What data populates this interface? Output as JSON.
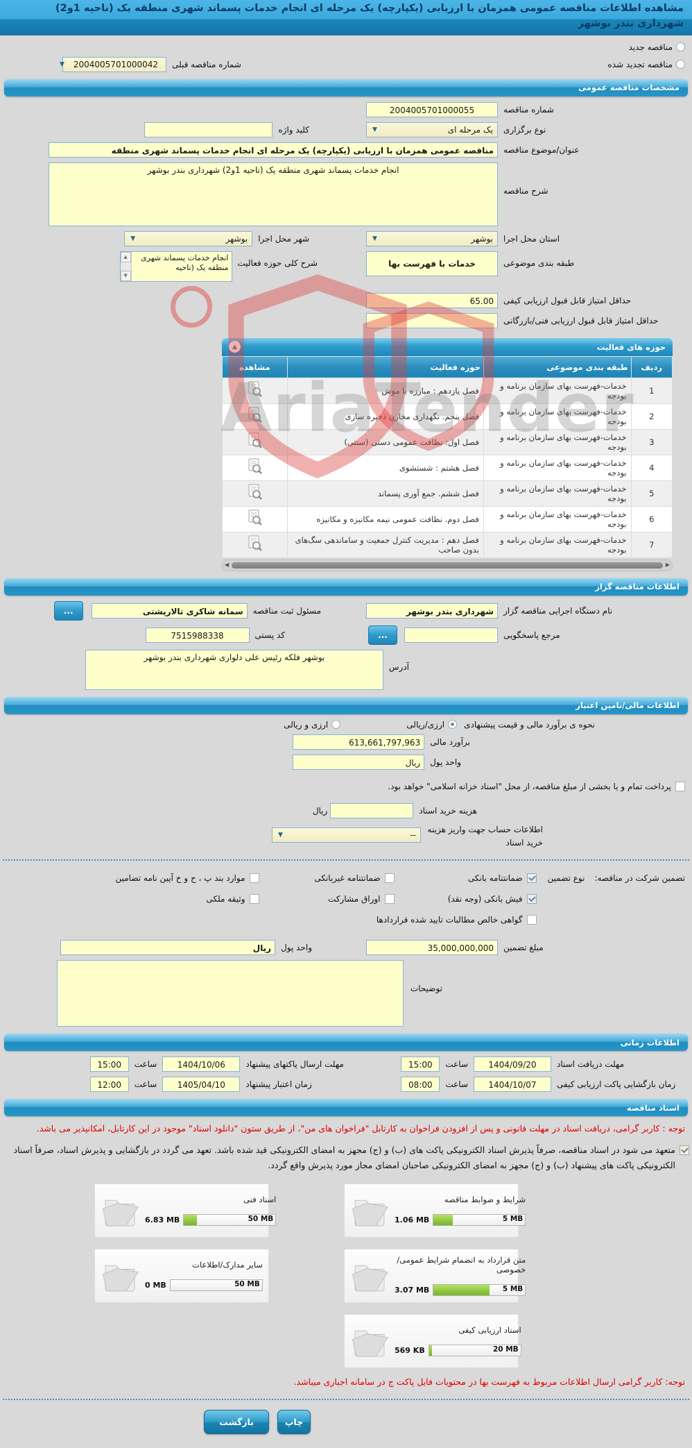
{
  "title": "مشاهده اطلاعات مناقصه عمومی همزمان با ارزیابی (یکپارچه) یک مرحله ای انجام خدمات پسماند شهری منطقه یک (ناحیه 1و2) شهرداری بندر بوشهر",
  "colors": {
    "accent": "#2795c8",
    "field_bg": "#ffffcc",
    "alert_red": "#e00000",
    "progress_green": "#8cc63e"
  },
  "top": {
    "new_label": "مناقصه جدید",
    "new_checked": false,
    "renewed_label": "مناقصه تجدید شده",
    "renewed_checked": false,
    "prev_no_label": "شماره مناقصه قبلی",
    "prev_no_value": "2004005701000042"
  },
  "specs": {
    "header": "مشخصات مناقصه عمومی",
    "tender_no_label": "شماره مناقصه",
    "tender_no_value": "2004005701000055",
    "type_label": "نوع برگزاری",
    "type_value": "یک مرحله ای",
    "keyword_label": "کلید واژه",
    "keyword_value": "",
    "subject_label": "عنوان/موضوع مناقصه",
    "subject_value": "مناقصه عمومی همزمان با ارزیابی (یکپارچه) یک مرحله ای انجام خدمات پسماند شهری منطقه",
    "desc_label": "شرح مناقصه",
    "desc_value": "انجام خدمات پسماند شهری منطقه یک (ناحیه 1و2) شهرداری بندر بوشهر",
    "province_label": "استان محل اجرا",
    "province_value": "بوشهر",
    "city_label": "شهر محل اجرا",
    "city_value": "بوشهر",
    "category_label": "طبقه بندی موضوعی",
    "category_value": "خدمات با فهرست بها",
    "scope_label": "شرح کلی حوزه فعالیت",
    "scope_value": "انجام خدمات پسماند شهری منطقه یک (ناحیه",
    "min_quality_label": "حداقل امتیاز قابل قبول ارزیابی کیفی",
    "min_quality_value": "65.00",
    "min_tech_label": "حداقل امتیاز قابل قبول ارزیابی فنی/بازرگانی",
    "min_tech_value": ""
  },
  "activity_table": {
    "header": "حوزه های فعالیت",
    "columns": {
      "row": "ردیف",
      "category": "طبقه بندی موضوعی",
      "activity": "حوزه فعالیت",
      "view": "مشاهده"
    },
    "rows": [
      {
        "num": "1",
        "category": "خدمات-فهرست بهای سازمان برنامه و بودجه",
        "activity": "فصل یازدهم : مبارزه با موش"
      },
      {
        "num": "2",
        "category": "خدمات-فهرست بهای سازمان برنامه و بودجه",
        "activity": "فصل پنجم. نگهداری مخازن ذخیره سازی"
      },
      {
        "num": "3",
        "category": "خدمات-فهرست بهای سازمان برنامه و بودجه",
        "activity": "فصل اول: نظافت عمومی دستی (سنتی)"
      },
      {
        "num": "4",
        "category": "خدمات-فهرست بهای سازمان برنامه و بودجه",
        "activity": "فصل هشتم : شستشوی"
      },
      {
        "num": "5",
        "category": "خدمات-فهرست بهای سازمان برنامه و بودجه",
        "activity": "فصل ششم. جمع آوری پسماند"
      },
      {
        "num": "6",
        "category": "خدمات-فهرست بهای سازمان برنامه و بودجه",
        "activity": "فصل دوم. نظافت عمومی نیمه مکانیزه و مکانیزه"
      },
      {
        "num": "7",
        "category": "خدمات-فهرست بهای سازمان برنامه و بودجه",
        "activity": "فصل دهم : مدیریت کنترل جمعیت و ساماندهی سگ‌های بدون صاحب"
      }
    ]
  },
  "employer": {
    "header": "اطلاعات مناقصه گزار",
    "agency_label": "نام دستگاه اجرایی مناقصه گزار",
    "agency_value": "شهرداری بندر بوشهر",
    "registrar_label": "مسئول ثبت مناقصه",
    "registrar_value": "سمانه شاکری تالارپشتی",
    "browse_label": "...",
    "ref_label": "مرجع پاسخگویی",
    "ref_value": "",
    "postal_label": "کد پستی",
    "postal_value": "7515988338",
    "address_label": "آدرس",
    "address_value": "بوشهر فلکه رئیس علی دلواری شهرداری بندر بوشهر"
  },
  "financial": {
    "header": "اطلاعات مالی/تامین اعتبار",
    "estimate_mode_label": "نحوه ی برآورد مالی و قیمت پیشنهادی",
    "modes": [
      {
        "label": "ارزی/ریالی",
        "checked": true
      },
      {
        "label": "ارزی و ریالی",
        "checked": false
      }
    ],
    "estimate_label": "برآورد مالی",
    "estimate_value": "613,661,797,963",
    "currency_label": "واحد پول",
    "currency_value": "ریال",
    "treasury_checked": false,
    "treasury_note": "پرداخت تمام و یا بخشی از مبلغ مناقصه، از محل \"اسناد خزانه اسلامی\" خواهد بود.",
    "doc_fee_label": "هزینه خرید اسناد",
    "doc_fee_value": "",
    "doc_fee_unit": "ریال",
    "account_label": "اطلاعات حساب جهت واریز هزینه خرید اسناد",
    "account_value": "--",
    "guarantee_group_label": "تضمین شرکت در مناقصه:",
    "guarantee_type_label": "نوع تضمین",
    "guarantees": [
      {
        "label": "ضمانتنامه بانکی",
        "checked": true
      },
      {
        "label": "ضمانتنامه غیربانکی",
        "checked": false
      },
      {
        "label": "موارد بند پ ، ح و خ آیین نامه تضامین",
        "checked": false
      },
      {
        "label": "فیش بانکی (وجه نقد)",
        "checked": true
      },
      {
        "label": "اوراق مشارکت",
        "checked": false
      },
      {
        "label": "وثیقه ملکی",
        "checked": false
      },
      {
        "label": "گواهی خالص مطالبات تایید شده قراردادها",
        "checked": false
      }
    ],
    "guarantee_amount_label": "مبلغ تضمین",
    "guarantee_amount_value": "35,000,000,000",
    "guarantee_currency_label": "واحد پول",
    "guarantee_currency_value": "ریال",
    "notes_label": "توضیحات",
    "notes_value": ""
  },
  "schedule": {
    "header": "اطلاعات زمانی",
    "hour_label": "ساعت",
    "items": [
      {
        "label": "مهلت دریافت اسناد",
        "date": "1404/09/20",
        "time": "15:00"
      },
      {
        "label": "مهلت ارسال پاکتهای پیشنهاد",
        "date": "1404/10/06",
        "time": "15:00"
      },
      {
        "label": "زمان بازگشایی پاکت ارزیابی کیفی",
        "date": "1404/10/07",
        "time": "08:00"
      },
      {
        "label": "زمان اعتبار پیشنهاد",
        "date": "1405/04/10",
        "time": "12:00"
      }
    ]
  },
  "documents": {
    "header": "اسناد مناقصه",
    "note1": "توجه : کاربر گرامی، دریافت اسناد در مهلت قانونی و پس از افزودن فراخوان به کارتابل \"فراخوان های من\"، از طریق ستون \"دانلود اسناد\" موجود در این کارتابل، امکانپذیر می باشد.",
    "commitment_checked": true,
    "commitment": "متعهد می شود در اسناد مناقصه، صرفاً پذیرش اسناد الکترونیکی پاکت های (ب) و (ج) مجهز به امضای الکترونیکی قید شده باشد. تعهد می گردد در بازگشایی و پذیرش اسناد، صرفاً اسناد الکترونیکی پاکت های پیشنهاد (ب) و (ج) مجهز به امضای الکترونیکی صاحبان امضای مجاز مورد پذیرش واقع گردد.",
    "cards": [
      {
        "title": "شرایط و ضوابط مناقصه",
        "used": "1.06 MB",
        "max": "5 MB",
        "pct": 21
      },
      {
        "title": "اسناد فنی",
        "used": "6.83 MB",
        "max": "50 MB",
        "pct": 14
      },
      {
        "title": "متن قرارداد به انضمام شرایط عمومی/خصوصی",
        "used": "3.07 MB",
        "max": "5 MB",
        "pct": 61
      },
      {
        "title": "سایر مدارک/اطلاعات",
        "used": "0 MB",
        "max": "50 MB",
        "pct": 0
      },
      {
        "title": "اسناد ارزیابی کیفی",
        "used": "569 KB",
        "max": "20 MB",
        "pct": 3
      }
    ],
    "note2": "توجه: کاربر گرامی ارسال اطلاعات مربوط به فهرست بها در محتویات فایل پاکت ج در سامانه اجباری میباشد."
  },
  "actions": {
    "print": "چاپ",
    "back": "بازگشت"
  },
  "watermark": {
    "text": "AriaTender"
  }
}
